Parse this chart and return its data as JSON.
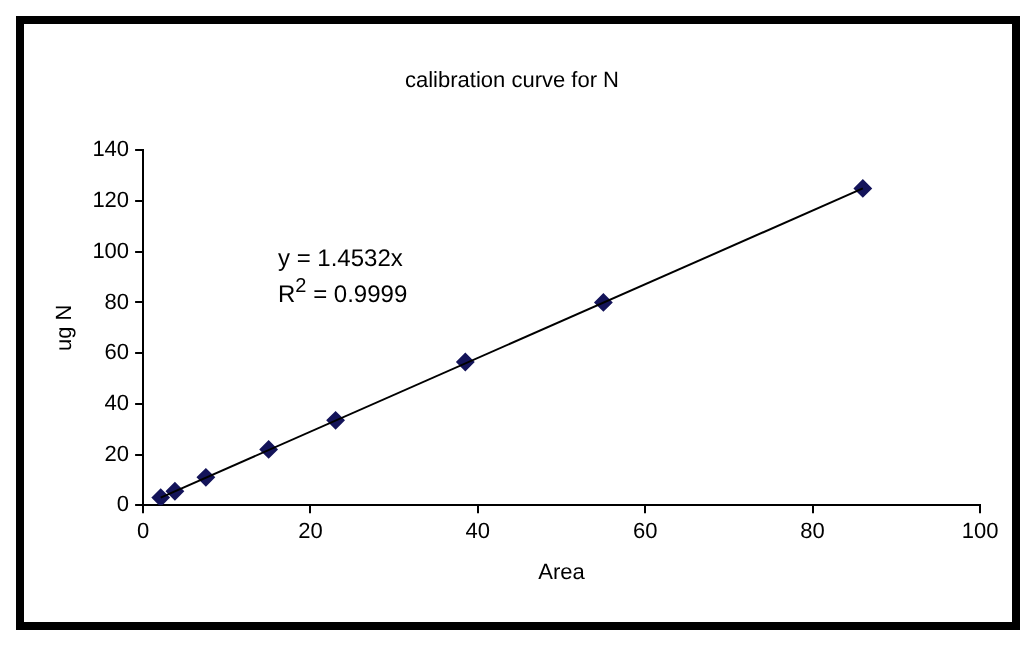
{
  "chart_data": {
    "type": "scatter",
    "title": "calibration curve for N",
    "xlabel": "Area",
    "ylabel": "ug N",
    "xlim": [
      0,
      100
    ],
    "xticks": [
      0,
      20,
      40,
      60,
      80,
      100
    ],
    "ylim": [
      0,
      140
    ],
    "yticks": [
      0,
      20,
      40,
      60,
      80,
      100,
      120,
      140
    ],
    "grid": false,
    "legend": false,
    "marker": "diamond",
    "series": [
      {
        "color": "#14145a",
        "x": [
          2.1,
          3.8,
          7.5,
          15,
          23,
          38.5,
          55,
          86
        ],
        "values": [
          3,
          5.5,
          11,
          22,
          33.5,
          56.5,
          80,
          125
        ]
      },
      {
        "type": "line",
        "color": "#000000",
        "line_style": "solid",
        "marker": "none",
        "x": [
          2.1,
          86
        ],
        "values": [
          3,
          125
        ]
      }
    ],
    "annotations": [
      "y = 1.4532x",
      "R$^{2}$ = 0.9999"
    ]
  }
}
